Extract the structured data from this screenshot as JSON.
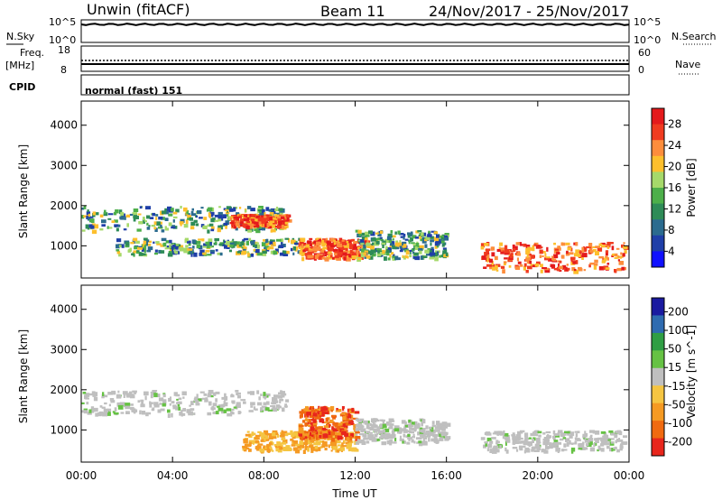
{
  "header": {
    "title": "Unwin (fitACF)",
    "beam": "Beam 11",
    "date_range": "24/Nov/2017 - 25/Nov/2017"
  },
  "top_panels": {
    "nsky_label": "N.Sky",
    "nsky_ticks": [
      "10^5",
      "10^0"
    ],
    "nsearch_label": "N.Search",
    "freq_label": "Freq.",
    "freq_unit": "[MHz]",
    "freq_ticks": [
      "18",
      "8"
    ],
    "nave_ticks": [
      "60",
      "0"
    ],
    "nave_label": "Nave",
    "cpid_label": "CPID",
    "cpid_value": "normal (fast) 151"
  },
  "chart_data": [
    {
      "type": "heatmap",
      "name": "power",
      "ylabel": "Slant Range [km]",
      "yticks": [
        1000,
        2000,
        3000,
        4000
      ],
      "ylim": [
        200,
        4600
      ],
      "xlim": [
        0,
        24
      ],
      "colorbar": {
        "label": "Power [dB]",
        "ticks": [
          "28",
          "24",
          "20",
          "16",
          "12",
          "8",
          "4"
        ],
        "colors": [
          "#e41a1c",
          "#f03b20",
          "#fd8d3c",
          "#fdbf2d",
          "#a6d96a",
          "#4daf4a",
          "#2e8b57",
          "#2b6b8f",
          "#1f3fa8",
          "#1010ff"
        ]
      },
      "regions": [
        {
          "t0": 0.0,
          "t1": 9.0,
          "r0": 1400,
          "r1": 2000,
          "level": "mid"
        },
        {
          "t0": 1.5,
          "t1": 9.5,
          "r0": 800,
          "r1": 1200,
          "level": "mid"
        },
        {
          "t0": 6.5,
          "t1": 9.0,
          "r0": 1500,
          "r1": 1800,
          "level": "high"
        },
        {
          "t0": 9.5,
          "t1": 12.5,
          "r0": 700,
          "r1": 1200,
          "level": "high"
        },
        {
          "t0": 12.0,
          "t1": 16.0,
          "r0": 700,
          "r1": 1400,
          "level": "mid"
        },
        {
          "t0": 17.5,
          "t1": 23.8,
          "r0": 400,
          "r1": 1100,
          "level": "high"
        }
      ]
    },
    {
      "type": "heatmap",
      "name": "velocity",
      "xlabel": "Time UT",
      "ylabel": "Slant Range [km]",
      "xticks": [
        "00:00",
        "04:00",
        "08:00",
        "12:00",
        "16:00",
        "20:00",
        "00:00"
      ],
      "yticks": [
        1000,
        2000,
        3000,
        4000
      ],
      "ylim": [
        200,
        4600
      ],
      "xlim": [
        0,
        24
      ],
      "colorbar": {
        "label": "Velocity [m s^-1]",
        "ticks": [
          "200",
          "100",
          "50",
          "15",
          "-15",
          "-50",
          "-100",
          "-200"
        ],
        "colors": [
          "#1a1aa0",
          "#2e6bb0",
          "#2f9e44",
          "#66c244",
          "#bfbfbf",
          "#f5c542",
          "#f59a23",
          "#f06a10",
          "#e8261c"
        ]
      },
      "regions": [
        {
          "t0": 0.0,
          "t1": 9.0,
          "r0": 1400,
          "r1": 2000,
          "level": "ground"
        },
        {
          "t0": 7.0,
          "t1": 12.0,
          "r0": 500,
          "r1": 1000,
          "level": "away"
        },
        {
          "t0": 9.5,
          "t1": 12.0,
          "r0": 800,
          "r1": 1600,
          "level": "fast-away"
        },
        {
          "t0": 12.0,
          "t1": 16.0,
          "r0": 700,
          "r1": 1300,
          "level": "ground"
        },
        {
          "t0": 17.5,
          "t1": 23.8,
          "r0": 500,
          "r1": 1000,
          "level": "ground"
        }
      ]
    }
  ]
}
